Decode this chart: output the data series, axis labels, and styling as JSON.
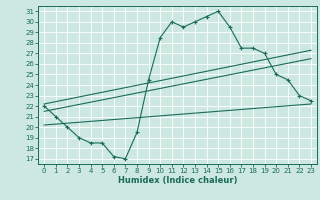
{
  "title": "",
  "xlabel": "Humidex (Indice chaleur)",
  "bg_color": "#cce8e0",
  "line_color": "#1a6b5a",
  "grid_color": "#b0d8d0",
  "xlim": [
    -0.5,
    23.5
  ],
  "ylim": [
    16.5,
    31.5
  ],
  "yticks": [
    17,
    18,
    19,
    20,
    21,
    22,
    23,
    24,
    25,
    26,
    27,
    28,
    29,
    30,
    31
  ],
  "xticks": [
    0,
    1,
    2,
    3,
    4,
    5,
    6,
    7,
    8,
    9,
    10,
    11,
    12,
    13,
    14,
    15,
    16,
    17,
    18,
    19,
    20,
    21,
    22,
    23
  ],
  "wavy_x": [
    0,
    1,
    2,
    3,
    4,
    5,
    6,
    7,
    8,
    9,
    10,
    11,
    12,
    13,
    14,
    15,
    16,
    17,
    18,
    19,
    20,
    21,
    22,
    23
  ],
  "wavy_y": [
    22.0,
    21.0,
    20.0,
    19.0,
    18.5,
    18.5,
    17.2,
    17.0,
    19.5,
    24.5,
    28.5,
    30.0,
    29.5,
    30.0,
    30.5,
    31.0,
    29.5,
    27.5,
    27.5,
    27.0,
    25.0,
    24.5,
    23.0,
    22.5
  ],
  "line1_x": [
    0,
    23
  ],
  "line1_y": [
    22.2,
    27.3
  ],
  "line2_x": [
    0,
    23
  ],
  "line2_y": [
    21.5,
    26.5
  ],
  "line3_x": [
    0,
    23
  ],
  "line3_y": [
    20.2,
    22.2
  ],
  "tick_fontsize": 5,
  "xlabel_fontsize": 6,
  "linewidth": 0.8,
  "marker": "+",
  "markersize": 3.0
}
